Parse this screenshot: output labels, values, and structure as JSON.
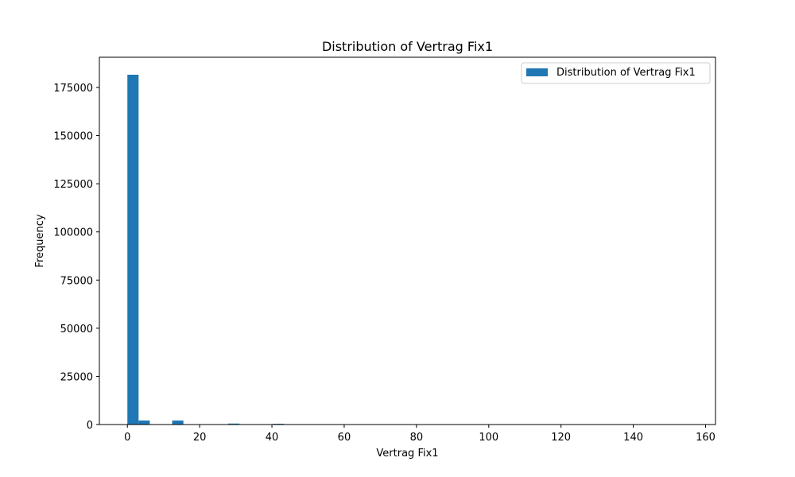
{
  "chart_data": {
    "type": "bar",
    "title": "Distribution of Vertrag Fix1",
    "xlabel": "Vertrag Fix1",
    "ylabel": "Frequency",
    "xlim": [
      -7.75,
      162.75
    ],
    "ylim": [
      0,
      190680
    ],
    "xticks": [
      0,
      20,
      40,
      60,
      80,
      100,
      120,
      140,
      160
    ],
    "yticks": [
      0,
      25000,
      50000,
      75000,
      100000,
      125000,
      150000,
      175000
    ],
    "grid": false,
    "legend_position": "top-right",
    "color": "#1f77b4",
    "series": [
      {
        "name": "Distribution of Vertrag Fix1",
        "bin_width": 3.1,
        "bins": [
          {
            "x0": 0.0,
            "value": 181600
          },
          {
            "x0": 3.1,
            "value": 2100
          },
          {
            "x0": 12.4,
            "value": 2100
          },
          {
            "x0": 27.9,
            "value": 500
          },
          {
            "x0": 40.3,
            "value": 400
          }
        ]
      }
    ]
  }
}
